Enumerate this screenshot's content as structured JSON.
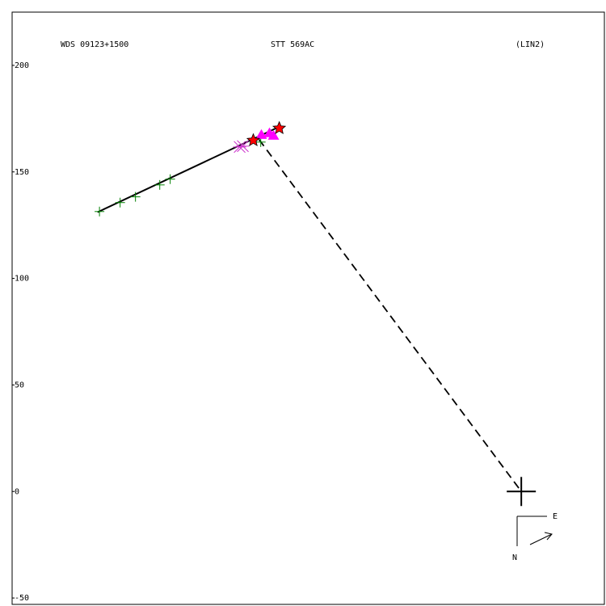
{
  "chart_data": {
    "type": "scatter",
    "title": "STT 569AC",
    "annotations": [
      "WDS 09123+1500",
      "(LIN2)"
    ],
    "compass": {
      "east": "E",
      "north": "N"
    },
    "xlim": [
      -239,
      39
    ],
    "ylim": [
      -53,
      225
    ],
    "yticks": [
      200,
      150,
      100,
      50,
      0,
      -50
    ],
    "grid": false,
    "series": [
      {
        "marker": "line",
        "color": "#000000",
        "x": [
          -198.9,
          -113.6
        ],
        "y": [
          131.1,
          171.2
        ]
      },
      {
        "marker": "dashed",
        "color": "#000000",
        "x": [
          -123.1,
          0
        ],
        "y": [
          165.2,
          0
        ]
      },
      {
        "marker": "plus",
        "color": "#008000",
        "x": [
          -198,
          -188.3,
          -181.1,
          -169.7,
          -164.8,
          -122.3
        ],
        "y": [
          131.4,
          135.6,
          138.3,
          143.9,
          146.6,
          164
        ]
      },
      {
        "marker": "cross",
        "color": "#cc33cc",
        "x": [
          -132.2,
          -130.7
        ],
        "y": [
          161.7,
          162.1
        ]
      },
      {
        "marker": "triangle",
        "color": "#ff00ff",
        "x": [
          -122,
          -118.2,
          -116.3
        ],
        "y": [
          167.4,
          168.2,
          167
        ]
      },
      {
        "marker": "star",
        "color": "#ff0000",
        "x": [
          -125.8,
          -113.6
        ],
        "y": [
          164.8,
          170.5
        ]
      },
      {
        "marker": "primary",
        "color": "#000000",
        "x": [
          0
        ],
        "y": [
          0
        ]
      }
    ]
  }
}
